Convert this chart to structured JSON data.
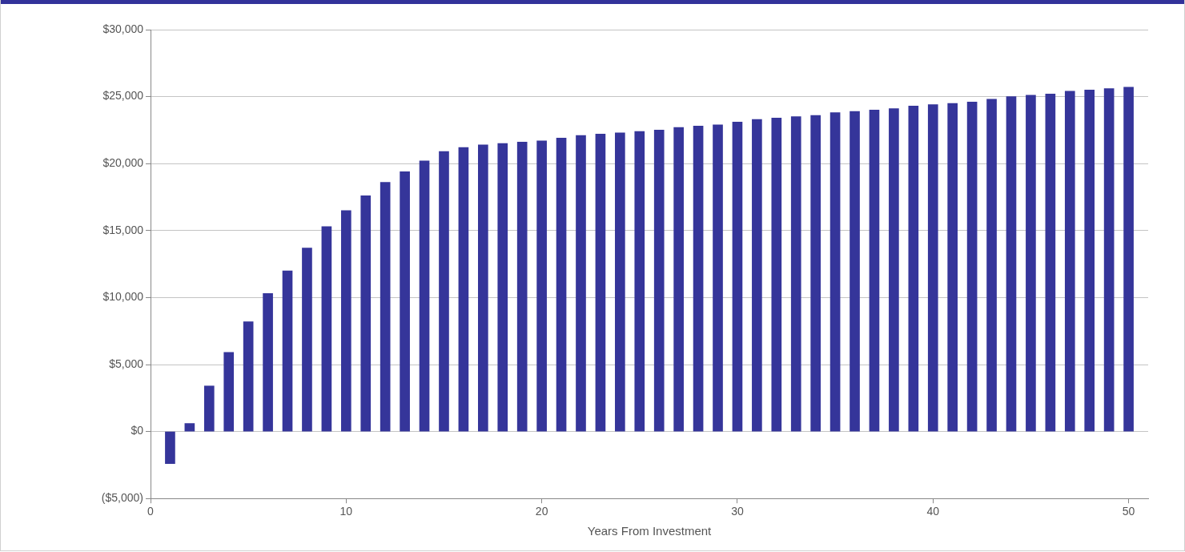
{
  "chart_data": {
    "type": "bar",
    "xlabel": "Years From Investment",
    "x": [
      1,
      2,
      3,
      4,
      5,
      6,
      7,
      8,
      9,
      10,
      11,
      12,
      13,
      14,
      15,
      16,
      17,
      18,
      19,
      20,
      21,
      22,
      23,
      24,
      25,
      26,
      27,
      28,
      29,
      30,
      31,
      32,
      33,
      34,
      35,
      36,
      37,
      38,
      39,
      40,
      41,
      42,
      43,
      44,
      45,
      46,
      47,
      48,
      49,
      50
    ],
    "values": [
      -2400,
      600,
      3400,
      5900,
      8200,
      10300,
      12000,
      13700,
      15300,
      16500,
      17600,
      18600,
      19400,
      20200,
      20900,
      21200,
      21400,
      21500,
      21600,
      21700,
      21900,
      22100,
      22200,
      22300,
      22400,
      22500,
      22700,
      22800,
      22900,
      23100,
      23300,
      23400,
      23500,
      23600,
      23800,
      23900,
      24000,
      24100,
      24300,
      24400,
      24500,
      24600,
      24800,
      25000,
      25100,
      25200,
      25400,
      25500,
      25600,
      25700
    ],
    "color": "#35359a",
    "xlim": [
      0,
      51
    ],
    "xticks": [
      0,
      10,
      20,
      30,
      40,
      50
    ],
    "ylim": [
      -5000,
      30000
    ],
    "yticks": [
      {
        "value": -5000,
        "label": "($5,000)"
      },
      {
        "value": 0,
        "label": "$0"
      },
      {
        "value": 5000,
        "label": "$5,000"
      },
      {
        "value": 10000,
        "label": "$10,000"
      },
      {
        "value": 15000,
        "label": "$15,000"
      },
      {
        "value": 20000,
        "label": "$20,000"
      },
      {
        "value": 25000,
        "label": "$25,000"
      },
      {
        "value": 30000,
        "label": "$30,000"
      }
    ],
    "grid": "y"
  }
}
